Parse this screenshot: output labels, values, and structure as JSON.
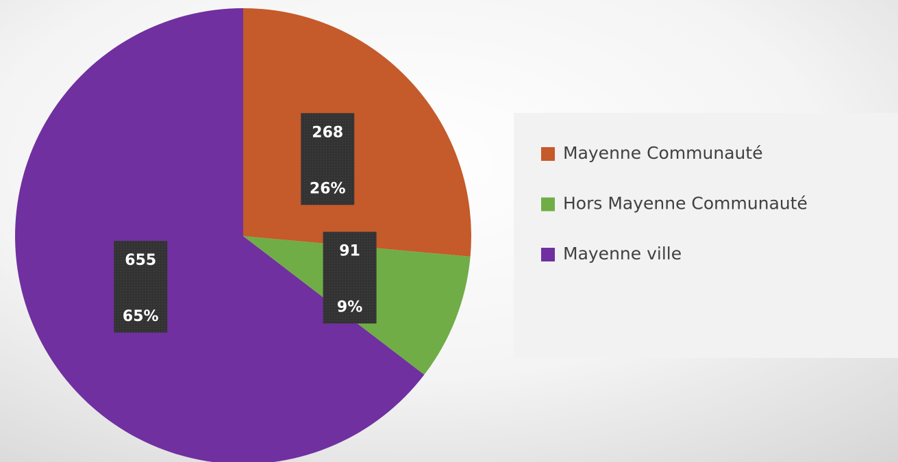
{
  "chart_data": {
    "type": "pie",
    "categories": [
      "Mayenne Communauté",
      "Hors Mayenne Communauté",
      "Mayenne ville"
    ],
    "values": [
      268,
      91,
      655
    ],
    "percent_labels": [
      "26%",
      "9%",
      "65%"
    ],
    "colors": [
      "#c55a2b",
      "#70ad47",
      "#7030a0"
    ],
    "legend": "right"
  }
}
